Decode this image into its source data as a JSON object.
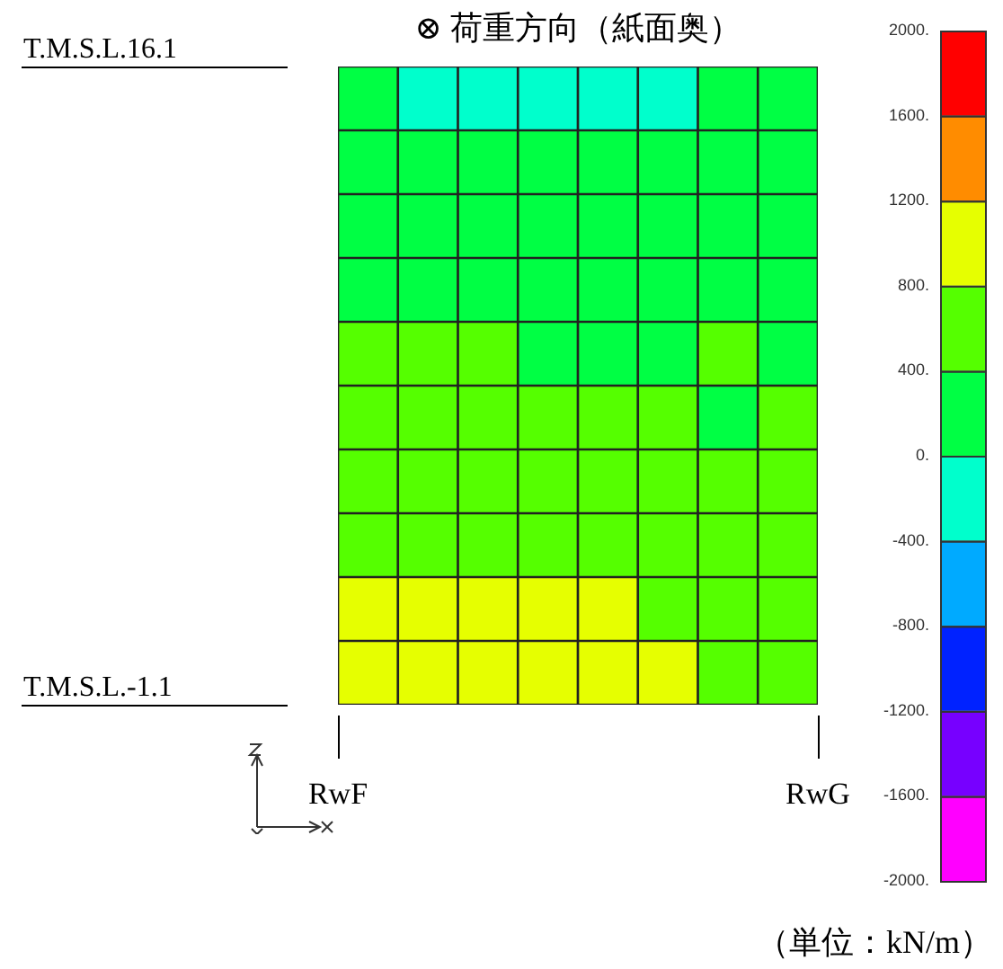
{
  "chart_data": {
    "type": "heatmap",
    "title": "⊗ 荷重方向（紙面奥）",
    "categories": [
      null,
      null,
      null,
      null,
      null,
      null,
      null,
      null
    ],
    "y_categories": [
      null,
      null,
      null,
      null,
      null,
      null,
      null,
      null,
      null,
      null
    ],
    "cells": [
      [
        200,
        -200,
        -200,
        -200,
        -200,
        -200,
        200,
        200
      ],
      [
        200,
        200,
        200,
        200,
        200,
        200,
        200,
        200
      ],
      [
        200,
        200,
        200,
        200,
        200,
        200,
        200,
        200
      ],
      [
        200,
        200,
        200,
        200,
        200,
        200,
        200,
        200
      ],
      [
        600,
        600,
        600,
        200,
        200,
        200,
        600,
        200
      ],
      [
        600,
        600,
        600,
        600,
        600,
        600,
        200,
        600
      ],
      [
        600,
        600,
        600,
        600,
        600,
        600,
        600,
        600
      ],
      [
        600,
        600,
        600,
        600,
        600,
        600,
        600,
        600
      ],
      [
        1000,
        1000,
        1000,
        1000,
        1000,
        600,
        600,
        600
      ],
      [
        1000,
        1000,
        1000,
        1000,
        1000,
        1000,
        600,
        600
      ]
    ],
    "clim": [
      -2000,
      2000
    ],
    "cticks": [
      {
        "value": -2000,
        "label": "-2000."
      },
      {
        "value": -1600,
        "label": "-1600."
      },
      {
        "value": -1200,
        "label": "-1200."
      },
      {
        "value": -800,
        "label": "-800."
      },
      {
        "value": -400,
        "label": "-400."
      },
      {
        "value": 0,
        "label": "0."
      },
      {
        "value": 400,
        "label": "400."
      },
      {
        "value": 800,
        "label": "800."
      },
      {
        "value": 1200,
        "label": "1200."
      },
      {
        "value": 1600,
        "label": "1600."
      },
      {
        "value": 2000,
        "label": "2000."
      }
    ],
    "annotations": [
      "T.M.S.L.16.1",
      "T.M.S.L.-1.1",
      "RwF",
      "RwG",
      "（単位：kN/m）"
    ]
  }
}
